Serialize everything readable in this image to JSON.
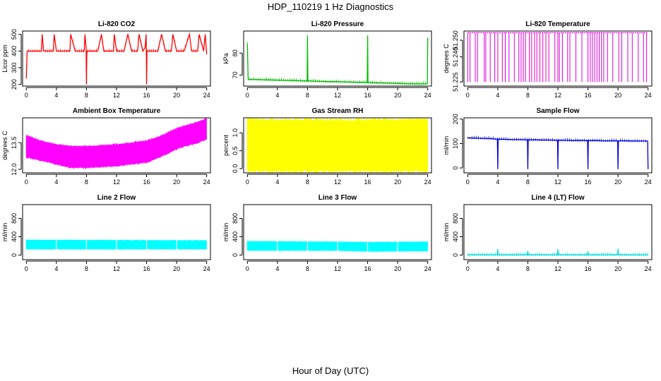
{
  "figure": {
    "title": "HDP_110219  1 Hz Diagnostics",
    "xlabel": "Hour of Day (UTC)"
  },
  "chart_data": [
    {
      "type": "line",
      "title": "Li-820 CO2",
      "ylabel": "Licor ppm",
      "color": "#ff0000",
      "xlim": [
        -0.5,
        24.5
      ],
      "xticks": [
        0,
        4,
        8,
        12,
        16,
        20,
        24
      ],
      "ylim": [
        190,
        520
      ],
      "yticks": [
        200,
        300,
        400,
        500
      ],
      "x": [
        0,
        0.1,
        0.2,
        0.5,
        1,
        2,
        2.1,
        2.3,
        3,
        3.6,
        3.7,
        4,
        4.5,
        5,
        5.8,
        5.9,
        6.5,
        7,
        7.7,
        7.8,
        7.95,
        8,
        8.05,
        8.2,
        9,
        9.5,
        10,
        10.3,
        11,
        11.6,
        11.7,
        12,
        13,
        13.5,
        14,
        14.8,
        15,
        15.5,
        15.8,
        15.95,
        16,
        16.05,
        16.2,
        17,
        17.5,
        18,
        18.5,
        19.3,
        19.5,
        20,
        21,
        21.7,
        22,
        22.8,
        23,
        23.6,
        23.8,
        24
      ],
      "y": [
        240,
        400,
        400,
        400,
        400,
        400,
        500,
        400,
        400,
        400,
        500,
        400,
        400,
        400,
        400,
        500,
        400,
        400,
        400,
        500,
        420,
        200,
        400,
        400,
        400,
        400,
        500,
        400,
        400,
        400,
        500,
        400,
        400,
        500,
        400,
        400,
        500,
        400,
        420,
        500,
        200,
        400,
        400,
        400,
        400,
        500,
        400,
        400,
        500,
        400,
        400,
        500,
        400,
        400,
        500,
        400,
        500,
        380
      ]
    },
    {
      "type": "line",
      "title": "Li-820 Pressure",
      "ylabel": "kPa",
      "color": "#00bb00",
      "xlim": [
        -0.5,
        24.5
      ],
      "xticks": [
        0,
        4,
        8,
        12,
        16,
        20,
        24
      ],
      "ylim": [
        65,
        90
      ],
      "yticks": [
        70,
        80
      ],
      "x": [
        0,
        0.05,
        0.1,
        0.3,
        1,
        2,
        3,
        4,
        5,
        6,
        7,
        7.95,
        8,
        8.05,
        9,
        10,
        11,
        12,
        13,
        14,
        15,
        15.95,
        16,
        16.05,
        17,
        18,
        19,
        20,
        21,
        22,
        23,
        23.95,
        24
      ],
      "y": [
        84,
        75,
        68,
        68,
        68,
        67.9,
        67.8,
        67.7,
        67.6,
        67.5,
        67.4,
        67.3,
        88,
        67.3,
        67.2,
        67.1,
        67,
        67,
        66.9,
        66.8,
        66.7,
        66.6,
        88,
        66.6,
        66.5,
        66.4,
        66.3,
        66.2,
        66.1,
        66,
        66,
        66,
        87
      ]
    },
    {
      "type": "line",
      "title": "Li-820 Temperature",
      "ylabel": "degrees C",
      "color": "#dd00dd",
      "xlim": [
        -0.5,
        24.5
      ],
      "xticks": [
        0,
        4,
        8,
        12,
        16,
        20,
        24
      ],
      "ylim": [
        51.2225,
        51.2555
      ],
      "yticks": [
        51.225,
        51.24,
        51.25
      ],
      "ytick_labels": [
        "51.225",
        "51.240",
        "51.250"
      ],
      "x": [
        0,
        0.3,
        1.0,
        1.3,
        2.2,
        2.4,
        3.0,
        3.6,
        4.0,
        4.6,
        5.0,
        5.5,
        6.2,
        6.8,
        7.1,
        7.4,
        7.7,
        8.2,
        8.5,
        8.9,
        9.2,
        9.6,
        10.0,
        10.4,
        10.8,
        11.6,
        12.0,
        12.2,
        12.6,
        13.3,
        13.6,
        14.4,
        15.2,
        16.0,
        16.3,
        16.6,
        16.9,
        17.2,
        17.5,
        17.8,
        18.1,
        18.6,
        19.3,
        20.1,
        20.5,
        21.3,
        21.9,
        22.7,
        23.4,
        23.8
      ],
      "y": [
        51.225,
        51.225,
        51.225,
        51.225,
        51.225,
        51.225,
        51.225,
        51.225,
        51.225,
        51.225,
        51.225,
        51.225,
        51.225,
        51.225,
        51.225,
        51.225,
        51.225,
        51.225,
        51.225,
        51.225,
        51.225,
        51.225,
        51.225,
        51.225,
        51.225,
        51.225,
        51.225,
        51.225,
        51.225,
        51.225,
        51.225,
        51.225,
        51.225,
        51.225,
        51.225,
        51.225,
        51.225,
        51.225,
        51.225,
        51.225,
        51.225,
        51.225,
        51.225,
        51.225,
        51.225,
        51.225,
        51.225,
        51.225,
        51.225,
        51.225
      ],
      "baseline": 51.2545
    },
    {
      "type": "area",
      "title": "Ambient Box Temperature",
      "ylabel": "degrees C",
      "color": "#ff00ff",
      "xlim": [
        -0.5,
        24.5
      ],
      "xticks": [
        0,
        4,
        8,
        12,
        16,
        20,
        24
      ],
      "ylim": [
        11.8,
        14.9
      ],
      "yticks": [
        12.0,
        13.5
      ],
      "ytick_labels": [
        "12.0",
        "13.5"
      ],
      "x": [
        0,
        2,
        4,
        6,
        8,
        10,
        12,
        14,
        16,
        17,
        18,
        19,
        20,
        21,
        22,
        23,
        24
      ],
      "upper": [
        13.9,
        13.6,
        13.4,
        13.3,
        13.3,
        13.35,
        13.4,
        13.5,
        13.6,
        13.75,
        13.9,
        14.1,
        14.3,
        14.45,
        14.55,
        14.7,
        14.85
      ],
      "lower": [
        12.7,
        12.5,
        12.3,
        12.1,
        12.1,
        12.15,
        12.2,
        12.3,
        12.4,
        12.55,
        12.75,
        12.95,
        13.15,
        13.3,
        13.4,
        13.55,
        13.7
      ]
    },
    {
      "type": "area",
      "title": "Gas Stream RH",
      "ylabel": "percent",
      "color": "#ffff00",
      "xlim": [
        -0.5,
        24.5
      ],
      "xticks": [
        0,
        4,
        8,
        12,
        16,
        20,
        24
      ],
      "ylim": [
        -0.12,
        1.42
      ],
      "yticks": [
        0.0,
        0.5,
        1.0
      ],
      "ytick_labels": [
        "0.0",
        "0.5",
        "1.0"
      ],
      "x": [
        0,
        4,
        8,
        12,
        16,
        20,
        24
      ],
      "upper": [
        1.38,
        1.35,
        1.36,
        1.34,
        1.35,
        1.37,
        1.38
      ],
      "lower": [
        -0.05,
        -0.05,
        -0.05,
        -0.05,
        -0.05,
        -0.05,
        -0.05
      ]
    },
    {
      "type": "line",
      "title": "Sample Flow",
      "ylabel": "ml/min",
      "color": "#0000dd",
      "xlim": [
        -0.5,
        24.5
      ],
      "xticks": [
        0,
        4,
        8,
        12,
        16,
        20,
        24
      ],
      "ylim": [
        -20,
        205
      ],
      "yticks": [
        0,
        100,
        200
      ],
      "x": [
        0,
        1,
        2,
        3,
        3.95,
        4,
        4.05,
        5,
        6,
        7,
        7.95,
        8,
        8.05,
        9,
        10,
        11,
        11.95,
        12,
        12.05,
        13,
        14,
        15,
        15.95,
        16,
        16.05,
        17,
        18,
        19,
        19.95,
        20,
        20.05,
        21,
        22,
        23,
        23.95,
        24
      ],
      "y": [
        123,
        122,
        121,
        120,
        118,
        -5,
        118,
        117,
        116,
        116,
        115,
        -5,
        115,
        115,
        114,
        114,
        113,
        -5,
        113,
        113,
        112,
        112,
        112,
        -5,
        112,
        112,
        111,
        111,
        111,
        -5,
        111,
        111,
        110,
        110,
        110,
        -5
      ]
    },
    {
      "type": "area",
      "title": "Line 2 Flow",
      "ylabel": "ml/min",
      "color": "#00ffff",
      "xlim": [
        -0.5,
        24.5
      ],
      "xticks": [
        0,
        4,
        8,
        12,
        16,
        20,
        24
      ],
      "ylim": [
        -100,
        1100
      ],
      "yticks": [
        0,
        400,
        800
      ],
      "x": [
        0,
        24
      ],
      "upper": [
        330,
        320
      ],
      "lower": [
        130,
        130
      ]
    },
    {
      "type": "area",
      "title": "Line 3 Flow",
      "ylabel": "ml/min",
      "color": "#00ffff",
      "xlim": [
        -0.5,
        24.5
      ],
      "xticks": [
        0,
        4,
        8,
        12,
        16,
        20,
        24
      ],
      "ylim": [
        -100,
        1100
      ],
      "yticks": [
        0,
        400,
        800
      ],
      "x": [
        0,
        12,
        16,
        24
      ],
      "upper": [
        300,
        290,
        280,
        290
      ],
      "lower": [
        100,
        100,
        80,
        90
      ]
    },
    {
      "type": "line",
      "title": "Line 4 (LT) Flow",
      "ylabel": "ml/min",
      "color": "#00dddd",
      "xlim": [
        -0.5,
        24.5
      ],
      "xticks": [
        0,
        4,
        8,
        12,
        16,
        20,
        24
      ],
      "ylim": [
        -100,
        1100
      ],
      "yticks": [
        0,
        400,
        800
      ],
      "x": [
        0,
        3.95,
        4,
        4.05,
        7.95,
        8,
        8.05,
        11.95,
        12,
        12.05,
        15.95,
        16,
        16.05,
        19.95,
        20,
        20.05,
        24
      ],
      "y": [
        5,
        5,
        130,
        5,
        5,
        90,
        5,
        5,
        130,
        5,
        5,
        80,
        5,
        5,
        140,
        5,
        5
      ]
    }
  ]
}
